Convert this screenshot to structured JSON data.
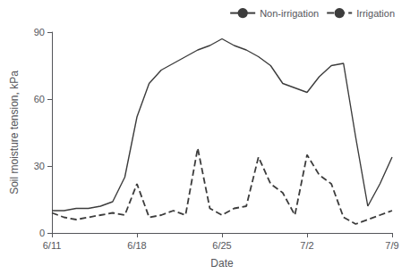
{
  "chart_data": {
    "type": "line",
    "xlabel": "Date",
    "ylabel": "Soil moisture tension, kPa",
    "x": [
      0,
      1,
      2,
      3,
      4,
      5,
      6,
      7,
      8,
      9,
      10,
      11,
      12,
      13,
      14,
      15,
      16,
      17,
      18,
      19,
      20,
      21,
      22,
      23,
      24,
      25,
      26,
      27,
      28
    ],
    "series": [
      {
        "name": "Non-irrigation",
        "color": "#3c3c3c",
        "line_style": "solid",
        "values": [
          10,
          10,
          11,
          11,
          12,
          14,
          25,
          52,
          67,
          73,
          76,
          79,
          82,
          84,
          87,
          84,
          82,
          79,
          75,
          67,
          65,
          63,
          70,
          75,
          76,
          43,
          12,
          22,
          34
        ]
      },
      {
        "name": "Irrigation",
        "color": "#3c3c3c",
        "line_style": "dashed",
        "values": [
          9,
          7,
          6,
          7,
          8,
          9,
          8,
          22,
          7,
          8,
          10,
          8,
          38,
          11,
          8,
          11,
          12,
          34,
          22,
          18,
          8,
          35,
          26,
          22,
          7,
          4,
          6,
          8,
          10
        ]
      }
    ],
    "xlim": [
      0,
      28
    ],
    "xticks": [
      {
        "value": 0,
        "label": "6/11"
      },
      {
        "value": 7,
        "label": "6/18"
      },
      {
        "value": 14,
        "label": "6/25"
      },
      {
        "value": 21,
        "label": "7/2"
      },
      {
        "value": 28,
        "label": "7/9"
      }
    ],
    "ylim": [
      0,
      90
    ],
    "yticks": [
      0,
      30,
      60,
      90
    ],
    "grid": false,
    "legend": "upper right"
  }
}
